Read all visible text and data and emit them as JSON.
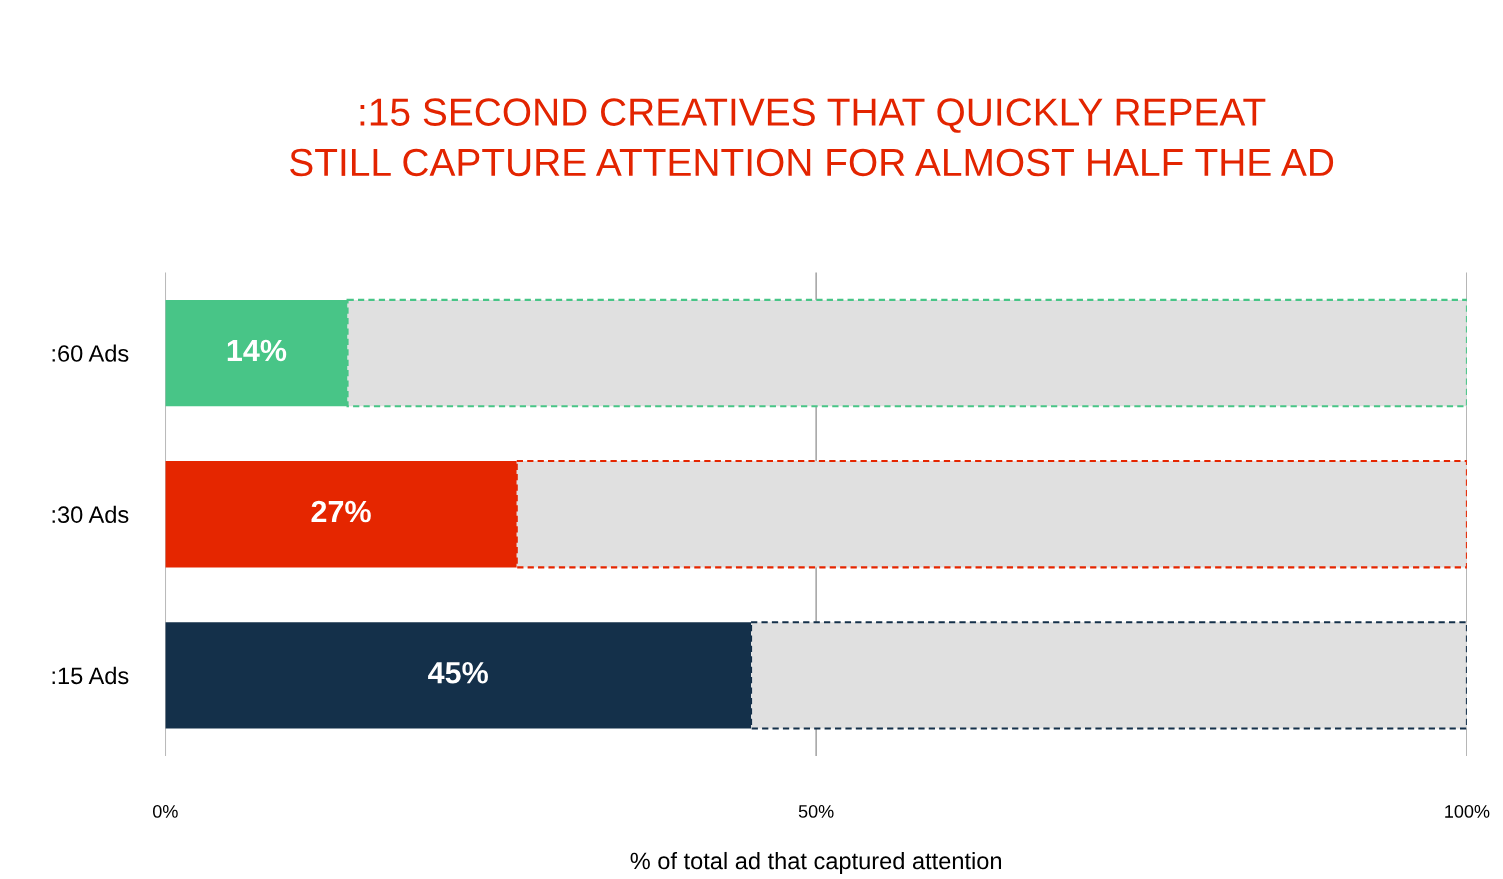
{
  "chart_data": {
    "type": "bar",
    "orientation": "horizontal",
    "stacked": true,
    "title": ":15 SECOND CREATIVES THAT QUICKLY REPEAT\nSTILL CAPTURE ATTENTION FOR ALMOST HALF THE AD",
    "xlabel": "% of total ad that captured attention",
    "categories": [
      ":60 Ads",
      ":30 Ads",
      ":15 Ads"
    ],
    "series": [
      {
        "colors": [
          "#48c587",
          "#e52600",
          "#14304a"
        ],
        "values": [
          14,
          27,
          45
        ],
        "value_labels": [
          "14%",
          "27%",
          "45%"
        ]
      },
      {
        "color": "#e0e0e0",
        "values": [
          86,
          73,
          55
        ],
        "line_style": "dashed"
      }
    ],
    "xlim": [
      0,
      100
    ],
    "xticks": [
      {
        "value": 0,
        "label": "0%"
      },
      {
        "value": 50,
        "label": "50%"
      },
      {
        "value": 100,
        "label": "100%"
      }
    ],
    "grid": "x"
  }
}
